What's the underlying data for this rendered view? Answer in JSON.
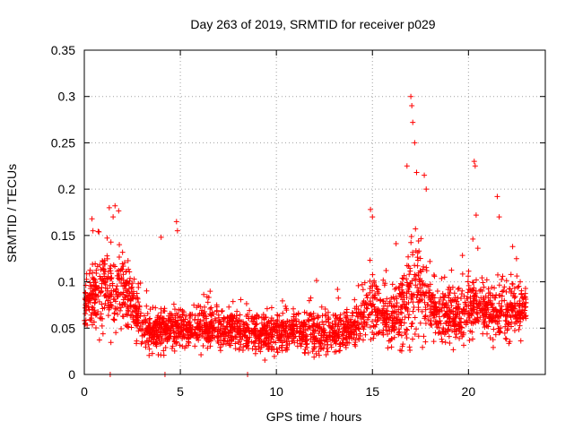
{
  "chart_data": {
    "type": "scatter",
    "title": "Day 263 of 2019, SRMTID for receiver p029",
    "xlabel": "GPS time / hours",
    "ylabel": "SRMTID / TECUs",
    "xlim": [
      0,
      24
    ],
    "ylim": [
      0,
      0.35
    ],
    "xticks": [
      0,
      5,
      10,
      15,
      20
    ],
    "xtick_labels": [
      "0",
      "5",
      "10",
      "15",
      "20"
    ],
    "yticks": [
      0,
      0.05,
      0.1,
      0.15,
      0.2,
      0.25,
      0.3,
      0.35
    ],
    "ytick_labels": [
      "0",
      "0.05",
      "0.1",
      "0.15",
      "0.2",
      "0.25",
      "0.3",
      "0.35"
    ],
    "grid": true,
    "marker": "+",
    "color": "#ff0000",
    "n_points_estimate": 2700,
    "envelope": {
      "x": [
        0,
        0.5,
        1,
        1.5,
        2,
        2.5,
        3,
        3.5,
        4,
        4.5,
        5,
        6,
        7,
        8,
        9,
        10,
        11,
        12,
        13,
        14,
        14.5,
        15,
        15.5,
        16,
        16.5,
        17,
        17.5,
        18,
        18.5,
        19,
        19.5,
        20,
        20.5,
        21,
        21.5,
        22,
        22.5,
        23
      ],
      "median": [
        0.07,
        0.085,
        0.09,
        0.095,
        0.09,
        0.08,
        0.05,
        0.045,
        0.045,
        0.05,
        0.05,
        0.05,
        0.05,
        0.048,
        0.045,
        0.045,
        0.048,
        0.045,
        0.045,
        0.05,
        0.06,
        0.07,
        0.065,
        0.06,
        0.07,
        0.09,
        0.09,
        0.075,
        0.065,
        0.065,
        0.065,
        0.07,
        0.075,
        0.07,
        0.065,
        0.065,
        0.07,
        0.07
      ],
      "spread": [
        0.02,
        0.025,
        0.03,
        0.03,
        0.025,
        0.025,
        0.015,
        0.015,
        0.015,
        0.015,
        0.015,
        0.015,
        0.015,
        0.015,
        0.015,
        0.015,
        0.015,
        0.015,
        0.015,
        0.015,
        0.02,
        0.025,
        0.02,
        0.02,
        0.03,
        0.04,
        0.035,
        0.025,
        0.02,
        0.02,
        0.02,
        0.025,
        0.025,
        0.02,
        0.02,
        0.02,
        0.02,
        0.015
      ]
    },
    "notable_points": [
      {
        "x": 0.4,
        "y": 0.168
      },
      {
        "x": 0.45,
        "y": 0.155
      },
      {
        "x": 1.3,
        "y": 0.18
      },
      {
        "x": 1.6,
        "y": 0.182
      },
      {
        "x": 1.5,
        "y": 0.17
      },
      {
        "x": 1.35,
        "y": 0.0
      },
      {
        "x": 4.2,
        "y": 0.0
      },
      {
        "x": 4.0,
        "y": 0.148
      },
      {
        "x": 4.8,
        "y": 0.165
      },
      {
        "x": 4.85,
        "y": 0.155
      },
      {
        "x": 8.5,
        "y": 0.0
      },
      {
        "x": 14.9,
        "y": 0.178
      },
      {
        "x": 15.0,
        "y": 0.17
      },
      {
        "x": 16.8,
        "y": 0.225
      },
      {
        "x": 17.0,
        "y": 0.3
      },
      {
        "x": 17.05,
        "y": 0.29
      },
      {
        "x": 17.1,
        "y": 0.272
      },
      {
        "x": 17.2,
        "y": 0.25
      },
      {
        "x": 17.3,
        "y": 0.218
      },
      {
        "x": 17.7,
        "y": 0.215
      },
      {
        "x": 17.8,
        "y": 0.2
      },
      {
        "x": 20.3,
        "y": 0.23
      },
      {
        "x": 20.35,
        "y": 0.225
      },
      {
        "x": 20.4,
        "y": 0.172
      },
      {
        "x": 21.5,
        "y": 0.192
      },
      {
        "x": 21.6,
        "y": 0.17
      },
      {
        "x": 22.5,
        "y": 0.125
      }
    ]
  }
}
